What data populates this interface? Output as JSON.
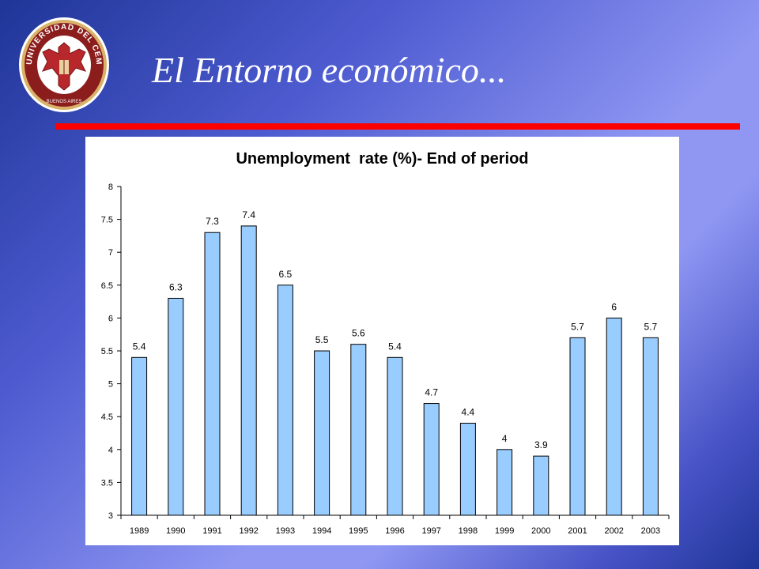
{
  "slide": {
    "title": "El Entorno económico...",
    "logo_text": "UNIVERSIDAD DEL CEMA",
    "logo_subtext": "BUENOS AIRES",
    "accent_rule_color": "#ff0000"
  },
  "chart_data": {
    "type": "bar",
    "title": "Unemployment  rate (%)- End of period",
    "xlabel": "",
    "ylabel": "",
    "categories": [
      "1989",
      "1990",
      "1991",
      "1992",
      "1993",
      "1994",
      "1995",
      "1996",
      "1997",
      "1998",
      "1999",
      "2000",
      "2001",
      "2002",
      "2003"
    ],
    "values": [
      5.4,
      6.3,
      7.3,
      7.4,
      6.5,
      5.5,
      5.6,
      5.4,
      4.7,
      4.4,
      4,
      3.9,
      5.7,
      6,
      5.7
    ],
    "data_labels": [
      "5.4",
      "6.3",
      "7.3",
      "7.4",
      "6.5",
      "5.5",
      "5.6",
      "5.4",
      "4.7",
      "4.4",
      "4",
      "3.9",
      "5.7",
      "6",
      "5.7"
    ],
    "ylim": [
      3,
      8
    ],
    "yticks": [
      "3",
      "3.5",
      "4",
      "4.5",
      "5",
      "5.5",
      "6",
      "6.5",
      "7",
      "7.5",
      "8"
    ],
    "grid": false,
    "legend": "none",
    "bar_color": "#99ccff",
    "bar_edge_color": "#000000"
  }
}
